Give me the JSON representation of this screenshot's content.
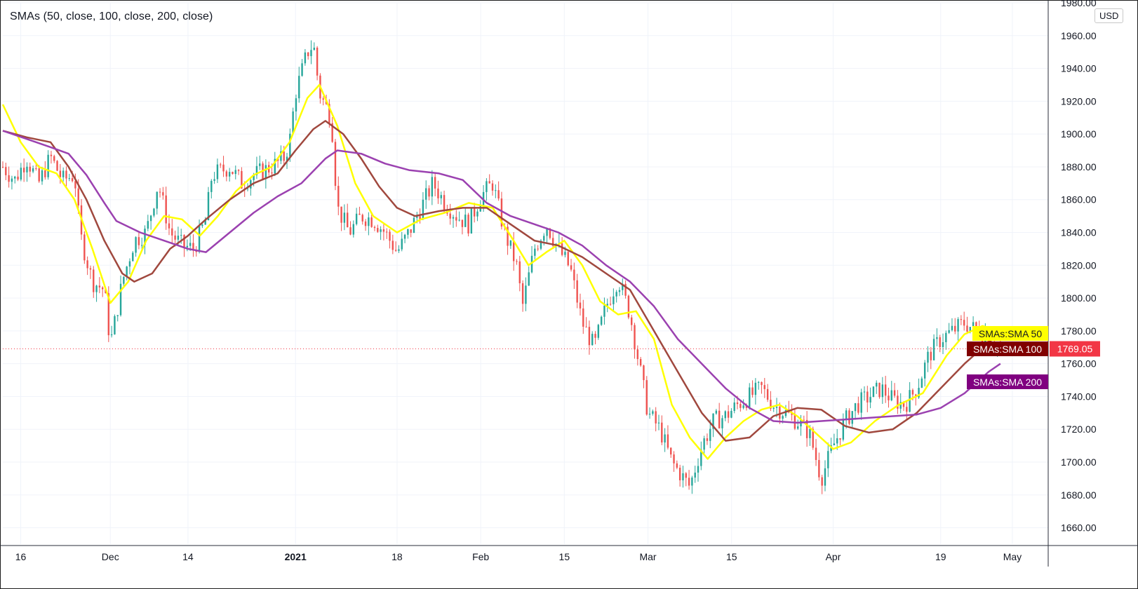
{
  "header": {
    "indicator_title": "SMAs (50, close, 100, close, 200, close)",
    "currency": "USD"
  },
  "last_price_label": "1769.05",
  "colors": {
    "up": "#26a69a",
    "down": "#ef5350",
    "sma50": "#ffff00",
    "sma100": "#a0483e",
    "sma200": "#9b41b0",
    "grid": "#f0f3fa",
    "last_price": "#f23645"
  },
  "chart_data": {
    "type": "line",
    "title": "",
    "xlabel": "",
    "ylabel": "",
    "ylim": [
      1650,
      1980
    ],
    "y_ticks": [
      1980,
      1960,
      1940,
      1920,
      1900,
      1880,
      1860,
      1840,
      1820,
      1800,
      1780,
      1760,
      1740,
      1720,
      1700,
      1680,
      1660
    ],
    "y_tick_labels": [
      "1980.00",
      "1960.00",
      "1940.00",
      "1920.00",
      "1900.00",
      "1880.00",
      "1860.00",
      "1840.00",
      "1820.00",
      "1800.00",
      "1780.00",
      "1760.00",
      "1740.00",
      "1720.00",
      "1700.00",
      "1680.00",
      "1660.00"
    ],
    "x_range": [
      "2020-11-13",
      "2021-05-07"
    ],
    "x_ticks": [
      {
        "label": "16",
        "date": "2020-11-16",
        "bold": false
      },
      {
        "label": "Dec",
        "date": "2020-12-01",
        "bold": false
      },
      {
        "label": "14",
        "date": "2020-12-14",
        "bold": false
      },
      {
        "label": "2021",
        "date": "2021-01-01",
        "bold": true
      },
      {
        "label": "18",
        "date": "2021-01-18",
        "bold": false
      },
      {
        "label": "Feb",
        "date": "2021-02-01",
        "bold": false
      },
      {
        "label": "15",
        "date": "2021-02-15",
        "bold": false
      },
      {
        "label": "Mar",
        "date": "2021-03-01",
        "bold": false
      },
      {
        "label": "15",
        "date": "2021-03-15",
        "bold": false
      },
      {
        "label": "Apr",
        "date": "2021-04-01",
        "bold": false
      },
      {
        "label": "19",
        "date": "2021-04-19",
        "bold": false
      },
      {
        "label": "May",
        "date": "2021-05-01",
        "bold": false
      }
    ],
    "grid": true,
    "legend": "right-axis-tags",
    "last_price": 1769.05,
    "price_path": [
      [
        "2020-11-13",
        1880
      ],
      [
        "2020-11-15",
        1872
      ],
      [
        "2020-11-17",
        1885
      ],
      [
        "2020-11-19",
        1870
      ],
      [
        "2020-11-21",
        1886
      ],
      [
        "2020-11-23",
        1872
      ],
      [
        "2020-11-25",
        1875
      ],
      [
        "2020-11-26",
        1838
      ],
      [
        "2020-11-28",
        1810
      ],
      [
        "2020-11-30",
        1805
      ],
      [
        "2020-12-01",
        1772
      ],
      [
        "2020-12-02",
        1790
      ],
      [
        "2020-12-03",
        1810
      ],
      [
        "2020-12-05",
        1835
      ],
      [
        "2020-12-07",
        1840
      ],
      [
        "2020-12-08",
        1855
      ],
      [
        "2020-12-09",
        1870
      ],
      [
        "2020-12-11",
        1840
      ],
      [
        "2020-12-13",
        1832
      ],
      [
        "2020-12-15",
        1830
      ],
      [
        "2020-12-17",
        1848
      ],
      [
        "2020-12-18",
        1875
      ],
      [
        "2020-12-21",
        1880
      ],
      [
        "2020-12-23",
        1870
      ],
      [
        "2020-12-25",
        1875
      ],
      [
        "2020-12-28",
        1880
      ],
      [
        "2020-12-30",
        1885
      ],
      [
        "2020-12-31",
        1895
      ],
      [
        "2021-01-01",
        1925
      ],
      [
        "2021-01-03",
        1950
      ],
      [
        "2021-01-04",
        1955
      ],
      [
        "2021-01-05",
        1925
      ],
      [
        "2021-01-07",
        1910
      ],
      [
        "2021-01-08",
        1855
      ],
      [
        "2021-01-10",
        1840
      ],
      [
        "2021-01-12",
        1850
      ],
      [
        "2021-01-14",
        1848
      ],
      [
        "2021-01-16",
        1840
      ],
      [
        "2021-01-18",
        1828
      ],
      [
        "2021-01-20",
        1840
      ],
      [
        "2021-01-22",
        1855
      ],
      [
        "2021-01-24",
        1870
      ],
      [
        "2021-01-26",
        1858
      ],
      [
        "2021-01-28",
        1850
      ],
      [
        "2021-01-30",
        1845
      ],
      [
        "2021-02-01",
        1862
      ],
      [
        "2021-02-03",
        1870
      ],
      [
        "2021-02-05",
        1840
      ],
      [
        "2021-02-07",
        1820
      ],
      [
        "2021-02-08",
        1795
      ],
      [
        "2021-02-10",
        1830
      ],
      [
        "2021-02-12",
        1845
      ],
      [
        "2021-02-14",
        1830
      ],
      [
        "2021-02-16",
        1818
      ],
      [
        "2021-02-18",
        1785
      ],
      [
        "2021-02-20",
        1770
      ],
      [
        "2021-02-22",
        1795
      ],
      [
        "2021-02-24",
        1812
      ],
      [
        "2021-02-26",
        1790
      ],
      [
        "2021-02-27",
        1770
      ],
      [
        "2021-03-01",
        1730
      ],
      [
        "2021-03-03",
        1720
      ],
      [
        "2021-03-05",
        1700
      ],
      [
        "2021-03-07",
        1690
      ],
      [
        "2021-03-08",
        1685
      ],
      [
        "2021-03-10",
        1710
      ],
      [
        "2021-03-12",
        1725
      ],
      [
        "2021-03-14",
        1728
      ],
      [
        "2021-03-16",
        1735
      ],
      [
        "2021-03-18",
        1740
      ],
      [
        "2021-03-20",
        1745
      ],
      [
        "2021-03-22",
        1735
      ],
      [
        "2021-03-24",
        1730
      ],
      [
        "2021-03-26",
        1725
      ],
      [
        "2021-03-28",
        1718
      ],
      [
        "2021-03-30",
        1690
      ],
      [
        "2021-04-01",
        1710
      ],
      [
        "2021-04-03",
        1725
      ],
      [
        "2021-04-05",
        1735
      ],
      [
        "2021-04-07",
        1740
      ],
      [
        "2021-04-09",
        1745
      ],
      [
        "2021-04-11",
        1738
      ],
      [
        "2021-04-13",
        1735
      ],
      [
        "2021-04-15",
        1745
      ],
      [
        "2021-04-17",
        1765
      ],
      [
        "2021-04-19",
        1775
      ],
      [
        "2021-04-21",
        1780
      ],
      [
        "2021-04-23",
        1785
      ],
      [
        "2021-04-25",
        1780
      ],
      [
        "2021-04-27",
        1778
      ],
      [
        "2021-04-29",
        1769
      ]
    ],
    "series": [
      {
        "name": "SMAs:SMA 50",
        "color": "#ffff00",
        "points": [
          [
            "2020-11-13",
            1918
          ],
          [
            "2020-11-16",
            1895
          ],
          [
            "2020-11-19",
            1880
          ],
          [
            "2020-11-22",
            1876
          ],
          [
            "2020-11-25",
            1860
          ],
          [
            "2020-11-28",
            1830
          ],
          [
            "2020-12-01",
            1797
          ],
          [
            "2020-12-04",
            1810
          ],
          [
            "2020-12-07",
            1835
          ],
          [
            "2020-12-10",
            1850
          ],
          [
            "2020-12-13",
            1848
          ],
          [
            "2020-12-16",
            1838
          ],
          [
            "2020-12-19",
            1850
          ],
          [
            "2020-12-22",
            1865
          ],
          [
            "2020-12-25",
            1875
          ],
          [
            "2020-12-28",
            1880
          ],
          [
            "2020-12-31",
            1895
          ],
          [
            "2021-01-03",
            1922
          ],
          [
            "2021-01-05",
            1930
          ],
          [
            "2021-01-08",
            1905
          ],
          [
            "2021-01-11",
            1870
          ],
          [
            "2021-01-14",
            1850
          ],
          [
            "2021-01-18",
            1840
          ],
          [
            "2021-01-22",
            1848
          ],
          [
            "2021-01-26",
            1852
          ],
          [
            "2021-01-30",
            1858
          ],
          [
            "2021-02-03",
            1855
          ],
          [
            "2021-02-06",
            1838
          ],
          [
            "2021-02-09",
            1820
          ],
          [
            "2021-02-12",
            1828
          ],
          [
            "2021-02-15",
            1835
          ],
          [
            "2021-02-18",
            1820
          ],
          [
            "2021-02-21",
            1798
          ],
          [
            "2021-02-24",
            1790
          ],
          [
            "2021-02-27",
            1792
          ],
          [
            "2021-03-02",
            1775
          ],
          [
            "2021-03-05",
            1735
          ],
          [
            "2021-03-08",
            1715
          ],
          [
            "2021-03-11",
            1702
          ],
          [
            "2021-03-14",
            1715
          ],
          [
            "2021-03-17",
            1725
          ],
          [
            "2021-03-20",
            1732
          ],
          [
            "2021-03-23",
            1735
          ],
          [
            "2021-03-26",
            1728
          ],
          [
            "2021-03-29",
            1718
          ],
          [
            "2021-04-01",
            1708
          ],
          [
            "2021-04-04",
            1712
          ],
          [
            "2021-04-08",
            1725
          ],
          [
            "2021-04-12",
            1735
          ],
          [
            "2021-04-16",
            1742
          ],
          [
            "2021-04-20",
            1765
          ],
          [
            "2021-04-23",
            1778
          ],
          [
            "2021-04-26",
            1783
          ],
          [
            "2021-04-29",
            1780
          ]
        ]
      },
      {
        "name": "SMAs:SMA 100",
        "color": "#a0483e",
        "points": [
          [
            "2020-11-13",
            1902
          ],
          [
            "2020-11-17",
            1898
          ],
          [
            "2020-11-21",
            1895
          ],
          [
            "2020-11-24",
            1880
          ],
          [
            "2020-11-27",
            1860
          ],
          [
            "2020-11-30",
            1835
          ],
          [
            "2020-12-03",
            1815
          ],
          [
            "2020-12-05",
            1810
          ],
          [
            "2020-12-08",
            1815
          ],
          [
            "2020-12-11",
            1830
          ],
          [
            "2020-12-14",
            1838
          ],
          [
            "2020-12-17",
            1848
          ],
          [
            "2020-12-21",
            1860
          ],
          [
            "2020-12-25",
            1870
          ],
          [
            "2020-12-29",
            1876
          ],
          [
            "2021-01-01",
            1890
          ],
          [
            "2021-01-04",
            1903
          ],
          [
            "2021-01-06",
            1908
          ],
          [
            "2021-01-09",
            1900
          ],
          [
            "2021-01-12",
            1885
          ],
          [
            "2021-01-15",
            1868
          ],
          [
            "2021-01-18",
            1855
          ],
          [
            "2021-01-21",
            1850
          ],
          [
            "2021-01-25",
            1853
          ],
          [
            "2021-01-29",
            1855
          ],
          [
            "2021-02-02",
            1855
          ],
          [
            "2021-02-06",
            1845
          ],
          [
            "2021-02-10",
            1835
          ],
          [
            "2021-02-14",
            1832
          ],
          [
            "2021-02-18",
            1825
          ],
          [
            "2021-02-22",
            1815
          ],
          [
            "2021-02-26",
            1805
          ],
          [
            "2021-03-02",
            1780
          ],
          [
            "2021-03-06",
            1755
          ],
          [
            "2021-03-10",
            1730
          ],
          [
            "2021-03-14",
            1713
          ],
          [
            "2021-03-18",
            1715
          ],
          [
            "2021-03-22",
            1728
          ],
          [
            "2021-03-26",
            1733
          ],
          [
            "2021-03-30",
            1732
          ],
          [
            "2021-04-03",
            1722
          ],
          [
            "2021-04-07",
            1718
          ],
          [
            "2021-04-11",
            1720
          ],
          [
            "2021-04-15",
            1730
          ],
          [
            "2021-04-19",
            1745
          ],
          [
            "2021-04-23",
            1760
          ],
          [
            "2021-04-27",
            1773
          ],
          [
            "2021-04-29",
            1779
          ]
        ]
      },
      {
        "name": "SMAs:SMA 200",
        "color": "#9b41b0",
        "points": [
          [
            "2020-11-13",
            1902
          ],
          [
            "2020-11-17",
            1897
          ],
          [
            "2020-11-21",
            1892
          ],
          [
            "2020-11-24",
            1888
          ],
          [
            "2020-11-27",
            1875
          ],
          [
            "2020-11-30",
            1858
          ],
          [
            "2020-12-02",
            1847
          ],
          [
            "2020-12-06",
            1840
          ],
          [
            "2020-12-10",
            1835
          ],
          [
            "2020-12-14",
            1830
          ],
          [
            "2020-12-17",
            1828
          ],
          [
            "2020-12-21",
            1840
          ],
          [
            "2020-12-25",
            1852
          ],
          [
            "2020-12-29",
            1862
          ],
          [
            "2021-01-02",
            1870
          ],
          [
            "2021-01-06",
            1885
          ],
          [
            "2021-01-08",
            1890
          ],
          [
            "2021-01-12",
            1888
          ],
          [
            "2021-01-16",
            1882
          ],
          [
            "2021-01-20",
            1878
          ],
          [
            "2021-01-25",
            1876
          ],
          [
            "2021-01-29",
            1872
          ],
          [
            "2021-02-02",
            1858
          ],
          [
            "2021-02-06",
            1850
          ],
          [
            "2021-02-10",
            1845
          ],
          [
            "2021-02-14",
            1840
          ],
          [
            "2021-02-18",
            1832
          ],
          [
            "2021-02-22",
            1820
          ],
          [
            "2021-02-26",
            1810
          ],
          [
            "2021-03-02",
            1795
          ],
          [
            "2021-03-06",
            1775
          ],
          [
            "2021-03-10",
            1760
          ],
          [
            "2021-03-14",
            1745
          ],
          [
            "2021-03-18",
            1733
          ],
          [
            "2021-03-22",
            1725
          ],
          [
            "2021-03-26",
            1724
          ],
          [
            "2021-03-30",
            1725
          ],
          [
            "2021-04-03",
            1726
          ],
          [
            "2021-04-07",
            1727
          ],
          [
            "2021-04-11",
            1728
          ],
          [
            "2021-04-15",
            1729
          ],
          [
            "2021-04-19",
            1733
          ],
          [
            "2021-04-23",
            1742
          ],
          [
            "2021-04-27",
            1755
          ],
          [
            "2021-04-29",
            1760
          ]
        ]
      }
    ]
  }
}
